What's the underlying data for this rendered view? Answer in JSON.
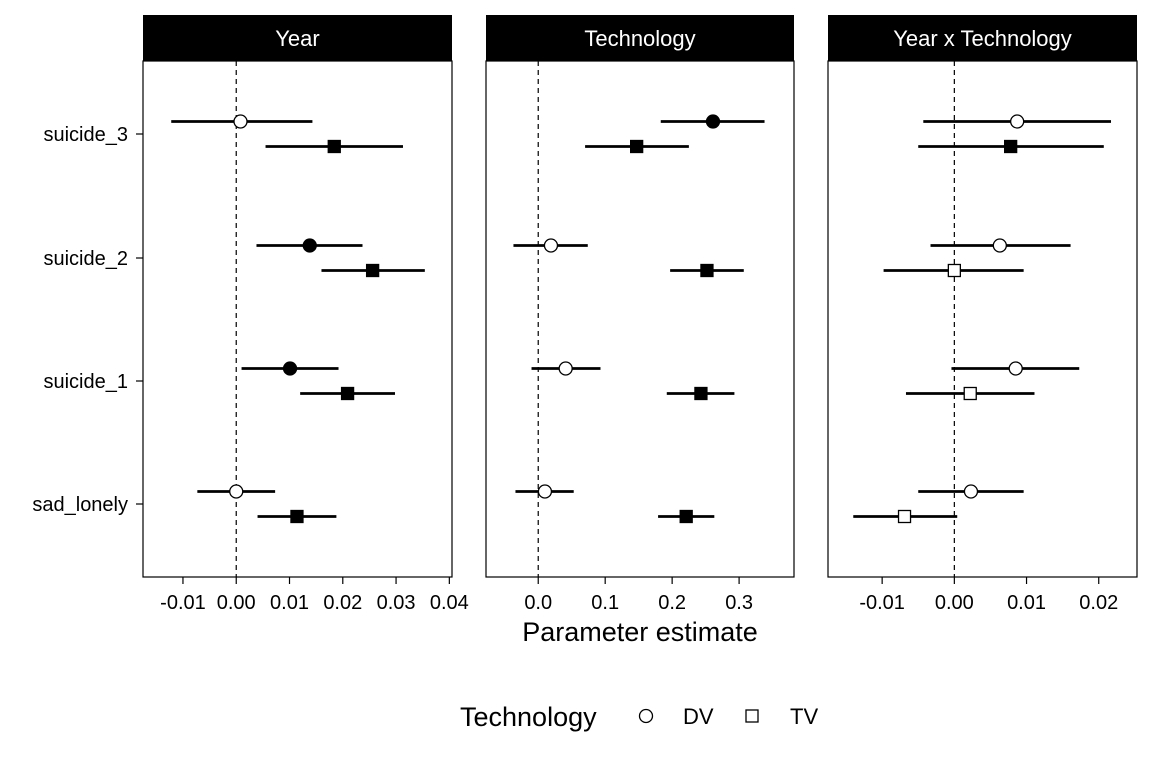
{
  "chart_data": {
    "type": "scatter",
    "subtype": "forest-plot-faceted",
    "xlabel": "Parameter estimate",
    "ylabel": "",
    "outcomes": [
      "suicide_3",
      "suicide_2",
      "suicide_1",
      "sad_lonely"
    ],
    "reference_line": 0,
    "grid": false,
    "fill_legend_shown": false,
    "legend": {
      "title": "Technology",
      "position": "bottom",
      "entries": [
        {
          "label": "DV",
          "shape": "circle"
        },
        {
          "label": "TV",
          "shape": "square"
        }
      ]
    },
    "panels": [
      {
        "title": "Year",
        "xlim": [
          -0.0175,
          0.0405
        ],
        "ticks": [
          -0.01,
          0.0,
          0.01,
          0.02,
          0.03,
          0.04
        ],
        "tick_labels": [
          "-0.01",
          "0.00",
          "0.01",
          "0.02",
          "0.03",
          "0.04"
        ],
        "series": [
          {
            "name": "DV",
            "shape": "circle",
            "points": [
              {
                "outcome": "suicide_3",
                "estimate": 0.0008,
                "low": -0.0122,
                "high": 0.0143,
                "filled": false
              },
              {
                "outcome": "suicide_2",
                "estimate": 0.0138,
                "low": 0.0038,
                "high": 0.0237,
                "filled": true
              },
              {
                "outcome": "suicide_1",
                "estimate": 0.0101,
                "low": 0.001,
                "high": 0.0192,
                "filled": true
              },
              {
                "outcome": "sad_lonely",
                "estimate": 0.0,
                "low": -0.0073,
                "high": 0.0073,
                "filled": false
              }
            ]
          },
          {
            "name": "TV",
            "shape": "square",
            "points": [
              {
                "outcome": "suicide_3",
                "estimate": 0.0184,
                "low": 0.0055,
                "high": 0.0313,
                "filled": true
              },
              {
                "outcome": "suicide_2",
                "estimate": 0.0256,
                "low": 0.016,
                "high": 0.0354,
                "filled": true
              },
              {
                "outcome": "suicide_1",
                "estimate": 0.0209,
                "low": 0.012,
                "high": 0.0298,
                "filled": true
              },
              {
                "outcome": "sad_lonely",
                "estimate": 0.0114,
                "low": 0.004,
                "high": 0.0188,
                "filled": true
              }
            ]
          }
        ]
      },
      {
        "title": "Technology",
        "xlim": [
          -0.078,
          0.382
        ],
        "ticks": [
          0.0,
          0.1,
          0.2,
          0.3
        ],
        "tick_labels": [
          "0.0",
          "0.1",
          "0.2",
          "0.3"
        ],
        "series": [
          {
            "name": "DV",
            "shape": "circle",
            "points": [
              {
                "outcome": "suicide_3",
                "estimate": 0.261,
                "low": 0.183,
                "high": 0.338,
                "filled": true
              },
              {
                "outcome": "suicide_2",
                "estimate": 0.019,
                "low": -0.037,
                "high": 0.074,
                "filled": false
              },
              {
                "outcome": "suicide_1",
                "estimate": 0.041,
                "low": -0.01,
                "high": 0.093,
                "filled": false
              },
              {
                "outcome": "sad_lonely",
                "estimate": 0.01,
                "low": -0.034,
                "high": 0.053,
                "filled": false
              }
            ]
          },
          {
            "name": "TV",
            "shape": "square",
            "points": [
              {
                "outcome": "suicide_3",
                "estimate": 0.147,
                "low": 0.07,
                "high": 0.225,
                "filled": true
              },
              {
                "outcome": "suicide_2",
                "estimate": 0.252,
                "low": 0.197,
                "high": 0.307,
                "filled": true
              },
              {
                "outcome": "suicide_1",
                "estimate": 0.243,
                "low": 0.192,
                "high": 0.293,
                "filled": true
              },
              {
                "outcome": "sad_lonely",
                "estimate": 0.221,
                "low": 0.179,
                "high": 0.263,
                "filled": true
              }
            ]
          }
        ]
      },
      {
        "title": "Year x Technology",
        "xlim": [
          -0.0175,
          0.0253
        ],
        "ticks": [
          -0.01,
          0.0,
          0.01,
          0.02
        ],
        "tick_labels": [
          "-0.01",
          "0.00",
          "0.01",
          "0.02"
        ],
        "series": [
          {
            "name": "DV",
            "shape": "circle",
            "points": [
              {
                "outcome": "suicide_3",
                "estimate": 0.0087,
                "low": -0.0043,
                "high": 0.0217,
                "filled": false
              },
              {
                "outcome": "suicide_2",
                "estimate": 0.0063,
                "low": -0.0033,
                "high": 0.0161,
                "filled": false
              },
              {
                "outcome": "suicide_1",
                "estimate": 0.0085,
                "low": -0.0004,
                "high": 0.0173,
                "filled": false
              },
              {
                "outcome": "sad_lonely",
                "estimate": 0.0023,
                "low": -0.005,
                "high": 0.0096,
                "filled": false
              }
            ]
          },
          {
            "name": "TV",
            "shape": "square",
            "points": [
              {
                "outcome": "suicide_3",
                "estimate": 0.0078,
                "low": -0.005,
                "high": 0.0207,
                "filled": true
              },
              {
                "outcome": "suicide_2",
                "estimate": 0.0,
                "low": -0.0098,
                "high": 0.0096,
                "filled": false
              },
              {
                "outcome": "suicide_1",
                "estimate": 0.0022,
                "low": -0.0067,
                "high": 0.0111,
                "filled": false
              },
              {
                "outcome": "sad_lonely",
                "estimate": -0.0069,
                "low": -0.014,
                "high": 0.0004,
                "filled": false
              }
            ]
          }
        ]
      }
    ],
    "colors": {
      "strip_background": "#000000",
      "strip_text": "#ffffff",
      "marker_filled": "#000000",
      "marker_open": "#ffffff",
      "line": "#000000"
    }
  }
}
